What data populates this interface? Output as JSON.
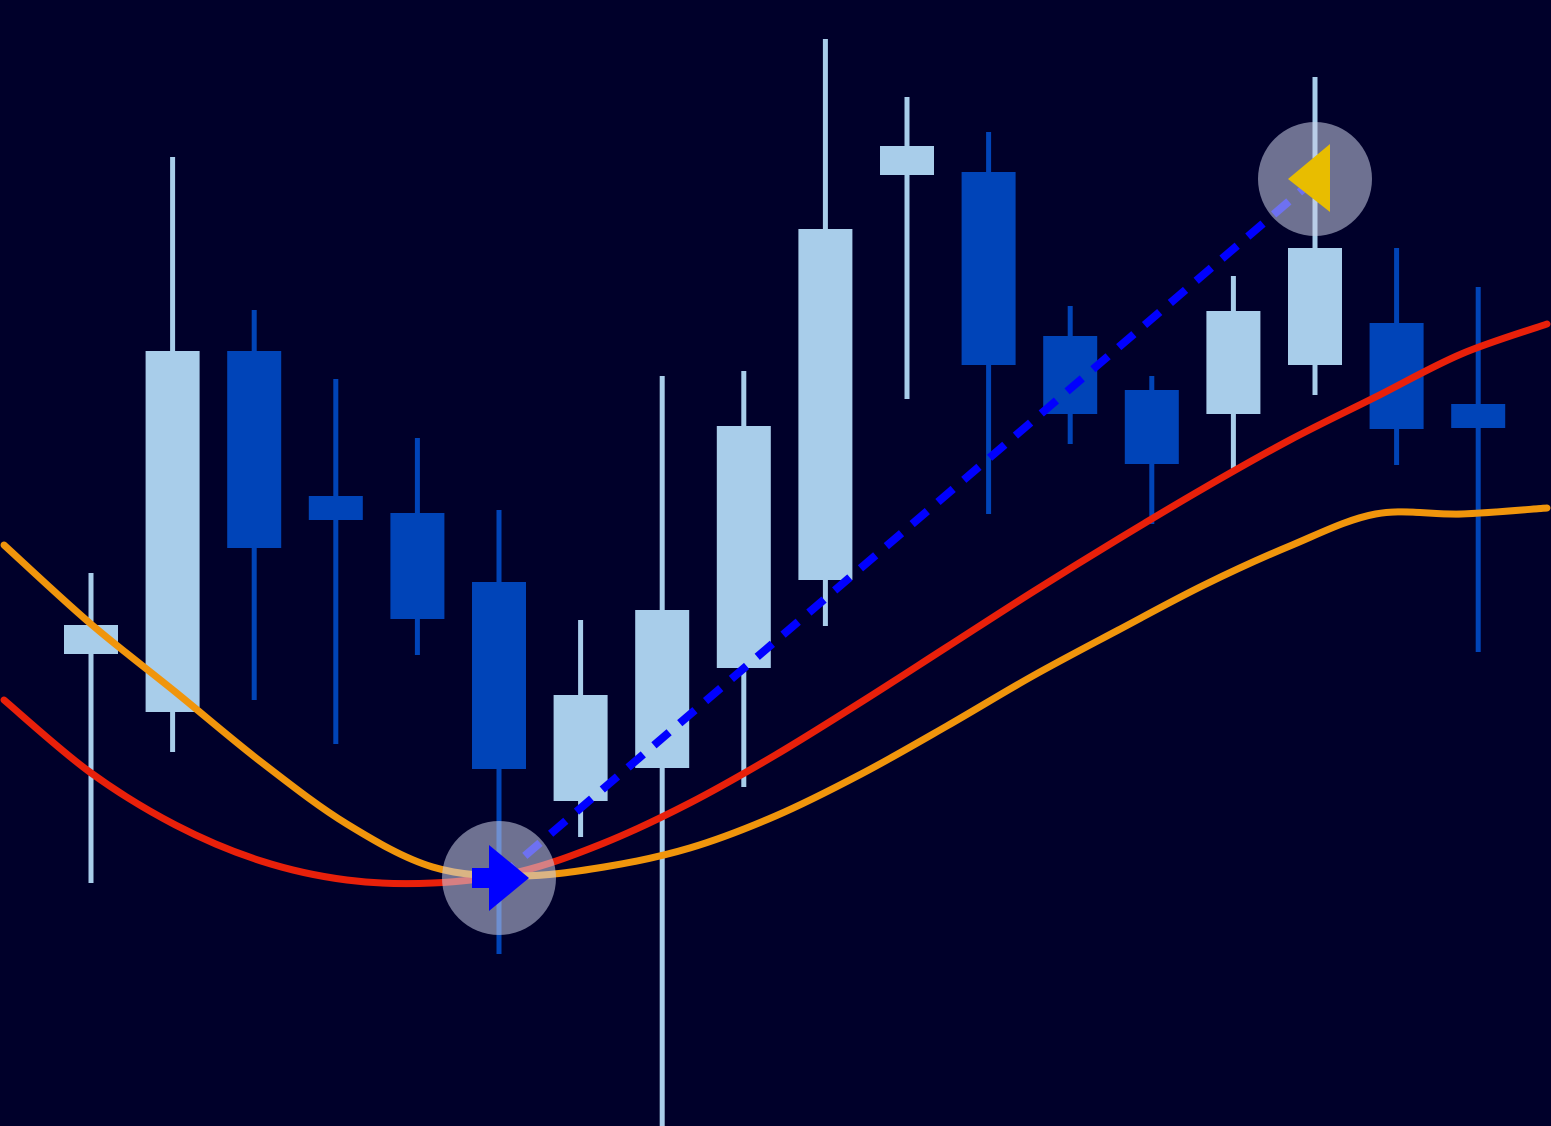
{
  "colors": {
    "background": "#00002a",
    "up_candle": "#a8cdea",
    "down_candle": "#0044b8",
    "ma_fast": "#e8200a",
    "ma_slow": "#f0950c",
    "trend_line": "#0000ff",
    "buy_marker": "#0000ff",
    "sell_marker": "#e8bd00"
  },
  "chart_data": {
    "type": "candlestick",
    "title": "",
    "xlabel": "",
    "ylabel": "",
    "grid": false,
    "legend": "none",
    "ylim": [
      0,
      1126
    ],
    "candles": [
      {
        "open": 472,
        "close": 501,
        "high": 553,
        "low": 243,
        "direction": "up"
      },
      {
        "open": 414,
        "close": 775,
        "high": 969,
        "low": 374,
        "direction": "up"
      },
      {
        "open": 775,
        "close": 578,
        "high": 816,
        "low": 426,
        "direction": "down"
      },
      {
        "open": 630,
        "close": 606,
        "high": 747,
        "low": 382,
        "direction": "down"
      },
      {
        "open": 613,
        "close": 507,
        "high": 688,
        "low": 471,
        "direction": "down"
      },
      {
        "open": 544,
        "close": 357,
        "high": 616,
        "low": 172,
        "direction": "down"
      },
      {
        "open": 325,
        "close": 431,
        "high": 506,
        "low": 289,
        "direction": "up"
      },
      {
        "open": 358,
        "close": 516,
        "high": 750,
        "low": 0,
        "direction": "up"
      },
      {
        "open": 458,
        "close": 700,
        "high": 755,
        "low": 339,
        "direction": "up"
      },
      {
        "open": 546,
        "close": 897,
        "high": 1087,
        "low": 500,
        "direction": "up"
      },
      {
        "open": 951,
        "close": 980,
        "high": 1029,
        "low": 727,
        "direction": "up"
      },
      {
        "open": 954,
        "close": 761,
        "high": 994,
        "low": 612,
        "direction": "down"
      },
      {
        "open": 790,
        "close": 712,
        "high": 820,
        "low": 682,
        "direction": "down"
      },
      {
        "open": 736,
        "close": 662,
        "high": 750,
        "low": 602,
        "direction": "down"
      },
      {
        "open": 712,
        "close": 815,
        "high": 850,
        "low": 657,
        "direction": "up"
      },
      {
        "open": 761,
        "close": 878,
        "high": 1049,
        "low": 731,
        "direction": "up"
      },
      {
        "open": 803,
        "close": 697,
        "high": 878,
        "low": 661,
        "direction": "down"
      },
      {
        "open": 722,
        "close": 698,
        "high": 839,
        "low": 474,
        "direction": "down"
      }
    ],
    "series": [
      {
        "role": "ma_fast",
        "values": [
          426,
          354,
          301,
          265,
          246,
          243,
          254,
          283,
          323,
          371,
          424,
          479,
          534,
          587,
          638,
          686,
          729,
          772,
          802
        ]
      },
      {
        "role": "ma_slow",
        "values": [
          581,
          503,
          434,
          364,
          302,
          259,
          250,
          259,
          278,
          310,
          352,
          400,
          450,
          496,
          541,
          580,
          612,
          612,
          618
        ]
      }
    ],
    "signals": [
      {
        "type": "buy",
        "candle_index": 5,
        "value": 248
      },
      {
        "type": "sell",
        "candle_index": 15,
        "value": 947
      }
    ],
    "trend_line": {
      "from_candle_index": 5,
      "from_value": 248,
      "to_candle_index": 15,
      "to_value": 947
    }
  }
}
